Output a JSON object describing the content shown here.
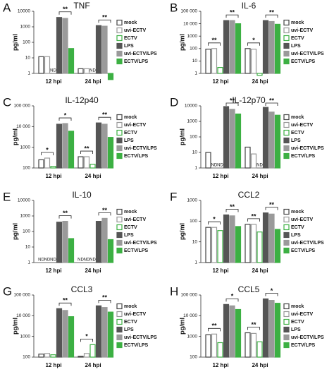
{
  "chart_data": [
    {
      "type": "bar",
      "panel": "A",
      "title": "TNF",
      "y_label": "pg/ml",
      "log_scale": true,
      "categories": [
        "12 hpi",
        "24 hpi"
      ],
      "ylim": [
        1,
        10000
      ],
      "yticks": [
        1,
        10,
        100,
        1000,
        10000
      ],
      "series": [
        {
          "name": "mock",
          "color": "#ffffff",
          "edge": "#444444",
          "values": [
            12,
            2
          ],
          "value_labels": [
            null,
            null
          ]
        },
        {
          "name": "uvi-ECTV",
          "color": "#ffffff",
          "edge": "#999999",
          "values": [
            12,
            2
          ],
          "value_labels": [
            null,
            null
          ]
        },
        {
          "name": "ECTV",
          "color": "#ffffff",
          "edge": "#3cb043",
          "values": [
            null,
            null
          ],
          "value_labels": [
            "ND",
            "ND"
          ]
        },
        {
          "name": "LPS",
          "color": "#555555",
          "edge": "#555555",
          "values": [
            4000,
            1200
          ],
          "value_labels": [
            null,
            null
          ]
        },
        {
          "name": "uvi-ECTV/LPS",
          "color": "#9a9a9a",
          "edge": "#9a9a9a",
          "values": [
            3500,
            1100
          ],
          "value_labels": [
            null,
            null
          ]
        },
        {
          "name": "ECTV/LPS",
          "color": "#3cb043",
          "edge": "#3cb043",
          "values": [
            40,
            0.4
          ],
          "value_labels": [
            null,
            null
          ]
        }
      ],
      "significance": [
        {
          "low": null,
          "high": "**"
        },
        {
          "low": null,
          "high": "**"
        }
      ]
    },
    {
      "type": "bar",
      "panel": "B",
      "title": "IL-6",
      "y_label": "pg/ml",
      "log_scale": true,
      "categories": [
        "12 hpi",
        "24 hpi"
      ],
      "ylim": [
        1,
        100000
      ],
      "yticks": [
        1,
        10,
        100,
        1000,
        {
          "value": 10000,
          "label": "10 000"
        },
        {
          "value": 100000,
          "label": "100 000"
        }
      ],
      "series": [
        {
          "name": "mock",
          "color": "#ffffff",
          "edge": "#444444",
          "values": [
            90,
            100
          ],
          "value_labels": [
            null,
            null
          ]
        },
        {
          "name": "uvi-ECTV",
          "color": "#ffffff",
          "edge": "#999999",
          "values": [
            100,
            90
          ],
          "value_labels": [
            null,
            null
          ]
        },
        {
          "name": "ECTV",
          "color": "#ffffff",
          "edge": "#3cb043",
          "values": [
            3,
            0.7
          ],
          "value_labels": [
            null,
            null
          ]
        },
        {
          "name": "LPS",
          "color": "#555555",
          "edge": "#555555",
          "values": [
            18000,
            18000
          ],
          "value_labels": [
            null,
            null
          ]
        },
        {
          "name": "uvi-ECTV/LPS",
          "color": "#9a9a9a",
          "edge": "#9a9a9a",
          "values": [
            18000,
            15000
          ],
          "value_labels": [
            null,
            null
          ]
        },
        {
          "name": "ECTV/LPS",
          "color": "#3cb043",
          "edge": "#3cb043",
          "values": [
            10000,
            9000
          ],
          "value_labels": [
            null,
            null
          ]
        }
      ],
      "significance": [
        {
          "low": "**",
          "high": "**"
        },
        {
          "low": "*",
          "high": "**"
        }
      ]
    },
    {
      "type": "bar",
      "panel": "C",
      "title": "IL-12p40",
      "y_label": "pg/ml",
      "log_scale": true,
      "categories": [
        "12 hpi",
        "24 hpi"
      ],
      "ylim": [
        100,
        100000
      ],
      "yticks": [
        100,
        1000,
        {
          "value": 10000,
          "label": "10 000"
        },
        {
          "value": 100000,
          "label": "100 000"
        }
      ],
      "series": [
        {
          "name": "mock",
          "color": "#ffffff",
          "edge": "#444444",
          "values": [
            250,
            350
          ],
          "value_labels": [
            null,
            null
          ]
        },
        {
          "name": "uvi-ECTV",
          "color": "#ffffff",
          "edge": "#999999",
          "values": [
            300,
            350
          ],
          "value_labels": [
            null,
            null
          ]
        },
        {
          "name": "ECTV",
          "color": "#ffffff",
          "edge": "#3cb043",
          "values": [
            120,
            150
          ],
          "value_labels": [
            null,
            null
          ]
        },
        {
          "name": "LPS",
          "color": "#555555",
          "edge": "#555555",
          "values": [
            13000,
            15000
          ],
          "value_labels": [
            null,
            null
          ]
        },
        {
          "name": "uvi-ECTV/LPS",
          "color": "#9a9a9a",
          "edge": "#9a9a9a",
          "values": [
            14000,
            13000
          ],
          "value_labels": [
            null,
            null
          ]
        },
        {
          "name": "ECTV/LPS",
          "color": "#3cb043",
          "edge": "#3cb043",
          "values": [
            6000,
            3000
          ],
          "value_labels": [
            null,
            null
          ]
        }
      ],
      "significance": [
        {
          "low": "*",
          "high": "*"
        },
        {
          "low": "**",
          "high": "**"
        }
      ]
    },
    {
      "type": "bar",
      "panel": "D",
      "title": "IL-12p70",
      "y_label": "pg/ml",
      "log_scale": true,
      "categories": [
        "12 hpi",
        "24 hpi"
      ],
      "ylim": [
        1,
        10000
      ],
      "yticks": [
        1,
        10,
        100,
        1000,
        10000
      ],
      "series": [
        {
          "name": "mock",
          "color": "#ffffff",
          "edge": "#444444",
          "values": [
            10,
            22
          ],
          "value_labels": [
            null,
            null
          ]
        },
        {
          "name": "uvi-ECTV",
          "color": "#ffffff",
          "edge": "#999999",
          "values": [
            null,
            8
          ],
          "value_labels": [
            "ND",
            null
          ]
        },
        {
          "name": "ECTV",
          "color": "#ffffff",
          "edge": "#3cb043",
          "values": [
            null,
            null
          ],
          "value_labels": [
            "ND",
            "ND"
          ]
        },
        {
          "name": "LPS",
          "color": "#555555",
          "edge": "#555555",
          "values": [
            9000,
            8000
          ],
          "value_labels": [
            null,
            null
          ]
        },
        {
          "name": "uvi-ECTV/LPS",
          "color": "#9a9a9a",
          "edge": "#9a9a9a",
          "values": [
            6000,
            4000
          ],
          "value_labels": [
            null,
            null
          ]
        },
        {
          "name": "ECTV/LPS",
          "color": "#3cb043",
          "edge": "#3cb043",
          "values": [
            3000,
            2500
          ],
          "value_labels": [
            null,
            null
          ]
        }
      ],
      "significance": [
        {
          "low": null,
          "high": "**"
        },
        {
          "low": null,
          "high": "**"
        }
      ]
    },
    {
      "type": "bar",
      "panel": "E",
      "title": "IL-10",
      "y_label": "pg/ml",
      "log_scale": true,
      "categories": [
        "12 hpi",
        "24 hpi"
      ],
      "ylim": [
        1,
        10000
      ],
      "yticks": [
        1,
        10,
        100,
        1000,
        10000
      ],
      "series": [
        {
          "name": "mock",
          "color": "#ffffff",
          "edge": "#444444",
          "values": [
            null,
            null
          ],
          "value_labels": [
            "ND",
            "ND"
          ]
        },
        {
          "name": "uvi-ECTV",
          "color": "#ffffff",
          "edge": "#999999",
          "values": [
            null,
            null
          ],
          "value_labels": [
            "ND",
            "ND"
          ]
        },
        {
          "name": "ECTV",
          "color": "#ffffff",
          "edge": "#3cb043",
          "values": [
            null,
            null
          ],
          "value_labels": [
            "ND",
            "ND"
          ]
        },
        {
          "name": "LPS",
          "color": "#555555",
          "edge": "#555555",
          "values": [
            400,
            450
          ],
          "value_labels": [
            null,
            null
          ]
        },
        {
          "name": "uvi-ECTV/LPS",
          "color": "#9a9a9a",
          "edge": "#9a9a9a",
          "values": [
            450,
            700
          ],
          "value_labels": [
            null,
            null
          ]
        },
        {
          "name": "ECTV/LPS",
          "color": "#3cb043",
          "edge": "#3cb043",
          "values": [
            35,
            30
          ],
          "value_labels": [
            null,
            null
          ]
        }
      ],
      "significance": [
        {
          "low": null,
          "high": "**"
        },
        {
          "low": null,
          "high": "**"
        }
      ]
    },
    {
      "type": "bar",
      "panel": "F",
      "title": "CCL2",
      "y_label": "pg/ml",
      "log_scale": true,
      "categories": [
        "12 hpi",
        "24 hpi"
      ],
      "ylim": [
        1,
        1000
      ],
      "yticks": [
        1,
        10,
        100,
        1000
      ],
      "series": [
        {
          "name": "mock",
          "color": "#ffffff",
          "edge": "#444444",
          "values": [
            50,
            70
          ],
          "value_labels": [
            null,
            null
          ]
        },
        {
          "name": "uvi-ECTV",
          "color": "#ffffff",
          "edge": "#999999",
          "values": [
            50,
            70
          ],
          "value_labels": [
            null,
            null
          ]
        },
        {
          "name": "ECTV",
          "color": "#ffffff",
          "edge": "#3cb043",
          "values": [
            35,
            30
          ],
          "value_labels": [
            null,
            null
          ]
        },
        {
          "name": "LPS",
          "color": "#555555",
          "edge": "#555555",
          "values": [
            200,
            250
          ],
          "value_labels": [
            null,
            null
          ]
        },
        {
          "name": "uvi-ECTV/LPS",
          "color": "#9a9a9a",
          "edge": "#9a9a9a",
          "values": [
            180,
            220
          ],
          "value_labels": [
            null,
            null
          ]
        },
        {
          "name": "ECTV/LPS",
          "color": "#3cb043",
          "edge": "#3cb043",
          "values": [
            55,
            40
          ],
          "value_labels": [
            null,
            null
          ]
        }
      ],
      "significance": [
        {
          "low": "*",
          "high": "**"
        },
        {
          "low": "**",
          "high": "**"
        }
      ]
    },
    {
      "type": "bar",
      "panel": "G",
      "title": "CCL3",
      "y_label": "pg/ml",
      "log_scale": true,
      "categories": [
        "12 hpi",
        "24 hpi"
      ],
      "ylim": [
        100,
        100000
      ],
      "yticks": [
        100,
        1000,
        {
          "value": 10000,
          "label": "10 000"
        },
        {
          "value": 100000,
          "label": "100 000"
        }
      ],
      "series": [
        {
          "name": "mock",
          "color": "#ffffff",
          "edge": "#444444",
          "values": [
            140,
            110
          ],
          "value_labels": [
            null,
            null
          ]
        },
        {
          "name": "uvi-ECTV",
          "color": "#ffffff",
          "edge": "#999999",
          "values": [
            150,
            150
          ],
          "value_labels": [
            null,
            null
          ]
        },
        {
          "name": "ECTV",
          "color": "#ffffff",
          "edge": "#3cb043",
          "values": [
            130,
            400
          ],
          "value_labels": [
            null,
            null
          ]
        },
        {
          "name": "LPS",
          "color": "#555555",
          "edge": "#555555",
          "values": [
            22000,
            30000
          ],
          "value_labels": [
            null,
            null
          ]
        },
        {
          "name": "uvi-ECTV/LPS",
          "color": "#9a9a9a",
          "edge": "#9a9a9a",
          "values": [
            18000,
            25000
          ],
          "value_labels": [
            null,
            null
          ]
        },
        {
          "name": "ECTV/LPS",
          "color": "#3cb043",
          "edge": "#3cb043",
          "values": [
            9000,
            15000
          ],
          "value_labels": [
            null,
            null
          ]
        }
      ],
      "significance": [
        {
          "low": null,
          "high": "**"
        },
        {
          "low": "*",
          "high": "**"
        }
      ]
    },
    {
      "type": "bar",
      "panel": "H",
      "title": "CCL5",
      "y_label": "pg/ml",
      "log_scale": true,
      "categories": [
        "12 hpi",
        "24 hpi"
      ],
      "ylim": [
        100,
        100000
      ],
      "yticks": [
        100,
        1000,
        {
          "value": 10000,
          "label": "10 000"
        },
        {
          "value": 100000,
          "label": "100 000"
        }
      ],
      "series": [
        {
          "name": "mock",
          "color": "#ffffff",
          "edge": "#444444",
          "values": [
            1200,
            1500
          ],
          "value_labels": [
            null,
            null
          ]
        },
        {
          "name": "uvi-ECTV",
          "color": "#ffffff",
          "edge": "#999999",
          "values": [
            1300,
            1400
          ],
          "value_labels": [
            null,
            null
          ]
        },
        {
          "name": "ECTV",
          "color": "#ffffff",
          "edge": "#3cb043",
          "values": [
            500,
            550
          ],
          "value_labels": [
            null,
            null
          ]
        },
        {
          "name": "LPS",
          "color": "#555555",
          "edge": "#555555",
          "values": [
            35000,
            65000
          ],
          "value_labels": [
            null,
            null
          ]
        },
        {
          "name": "uvi-ECTV/LPS",
          "color": "#9a9a9a",
          "edge": "#9a9a9a",
          "values": [
            30000,
            55000
          ],
          "value_labels": [
            null,
            null
          ]
        },
        {
          "name": "ECTV/LPS",
          "color": "#3cb043",
          "edge": "#3cb043",
          "values": [
            20000,
            40000
          ],
          "value_labels": [
            null,
            null
          ]
        }
      ],
      "significance": [
        {
          "low": "**",
          "high": "*"
        },
        {
          "low": "**",
          "high": "*"
        }
      ]
    }
  ]
}
